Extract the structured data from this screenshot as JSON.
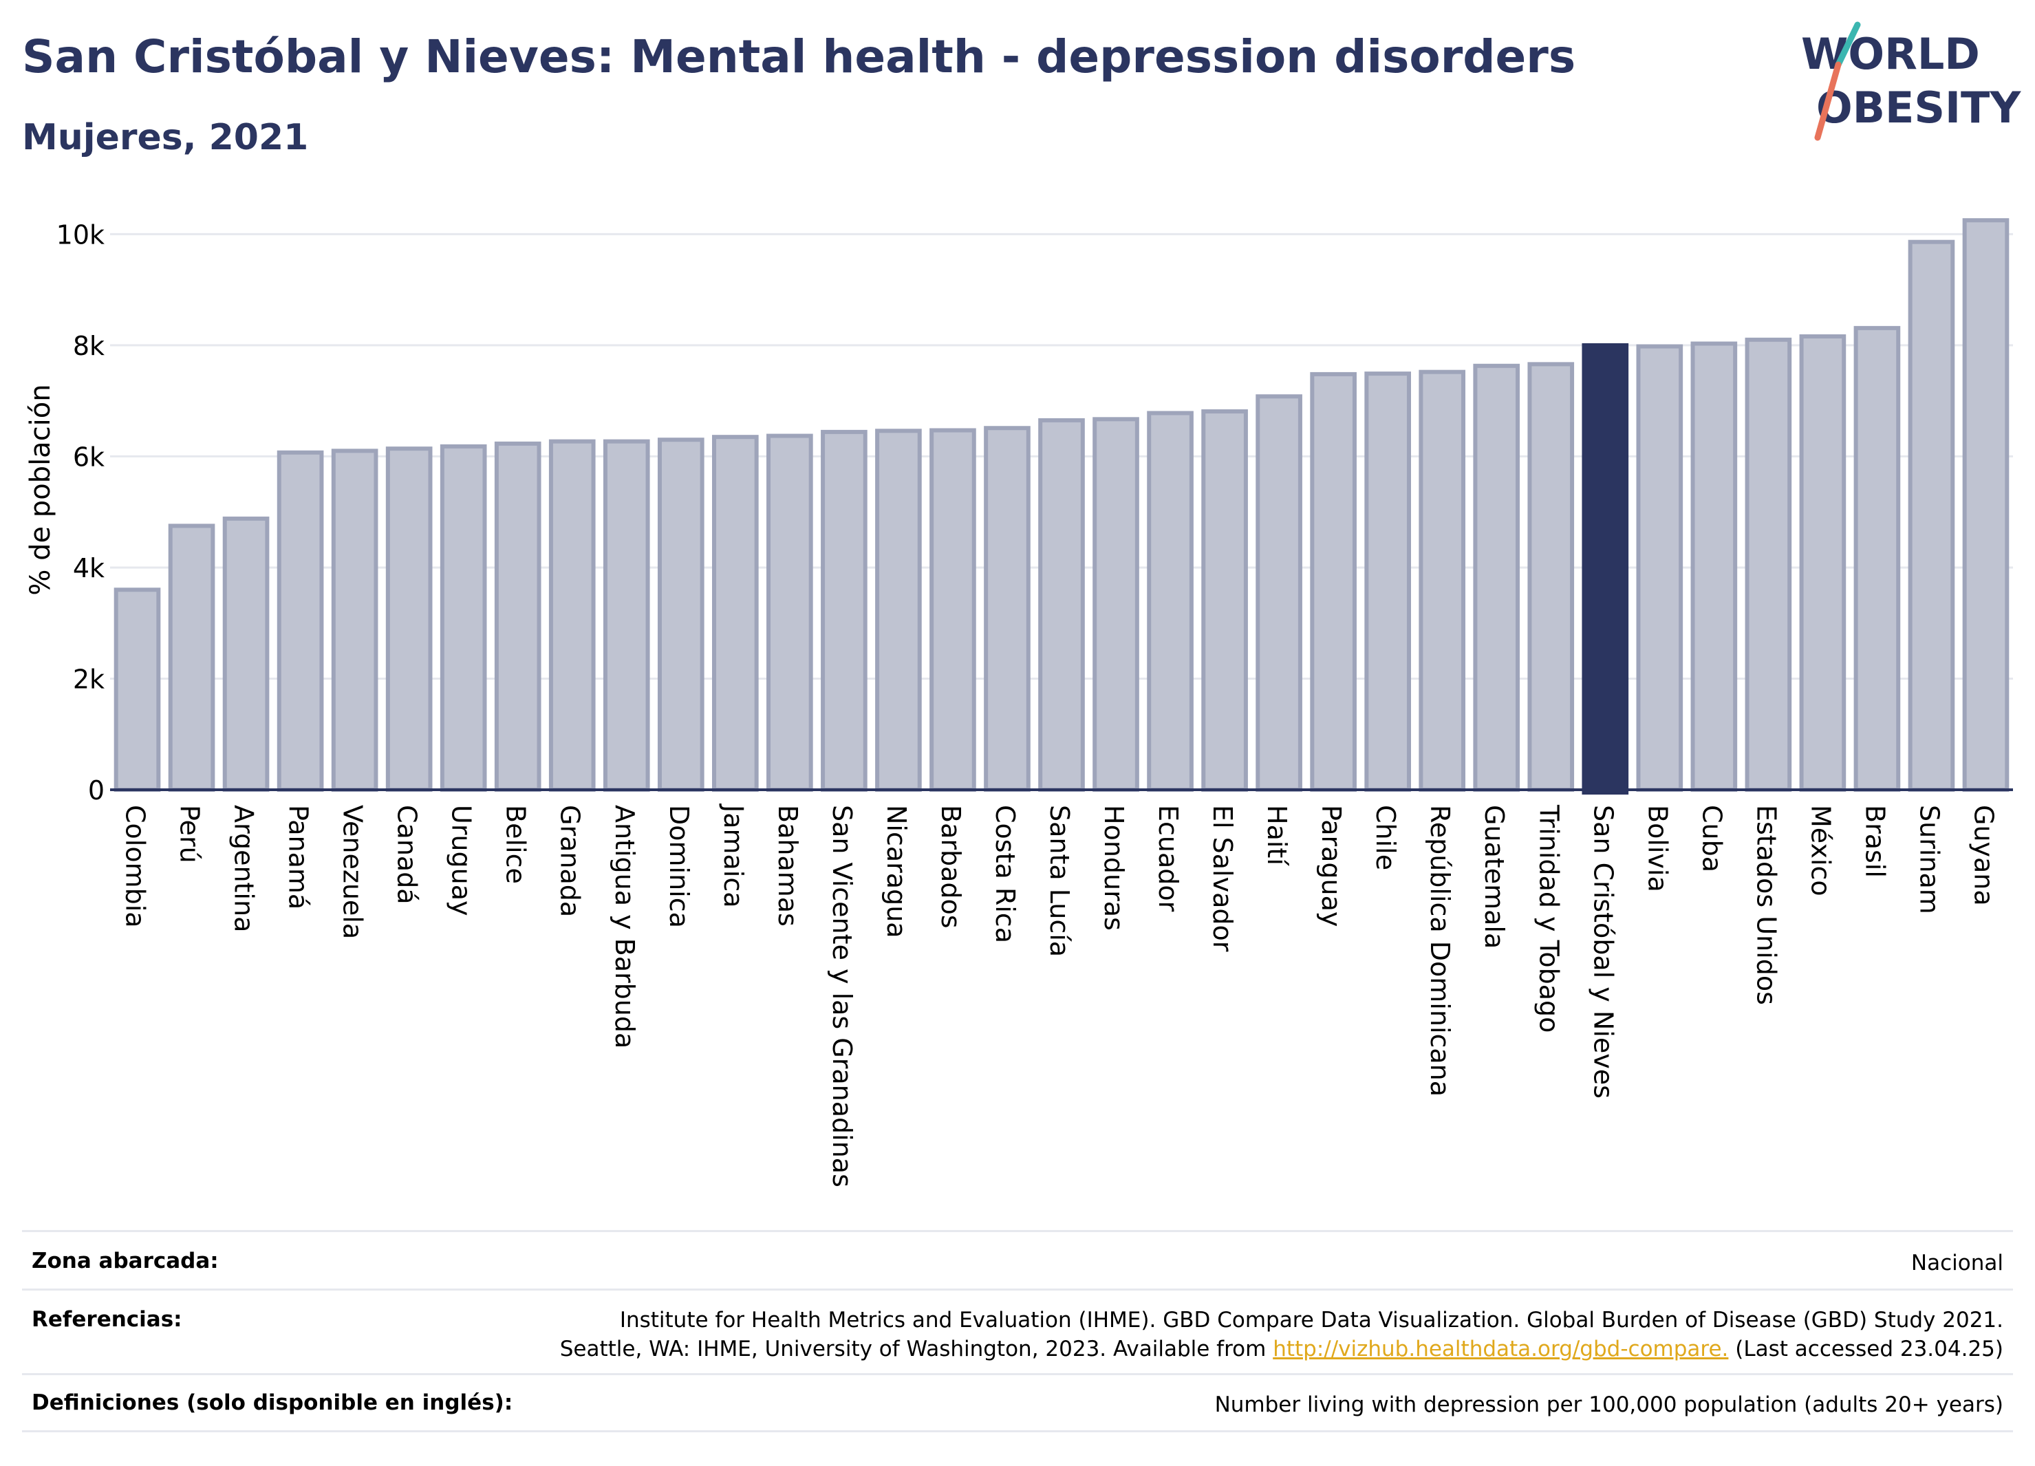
{
  "header": {
    "title": "San Cristóbal y Nieves: Mental health - depression disorders",
    "subtitle": "Mujeres, 2021"
  },
  "logo": {
    "line1": "WORLD",
    "line2": "OBESITY"
  },
  "colors": {
    "bar": "#bfc3d1",
    "bar_edge": "#9ea4ba",
    "highlight": "#2b3560",
    "grid": "#e6e8ee",
    "axis": "#2b3560"
  },
  "chart_data": {
    "type": "bar",
    "ylabel": "% de población",
    "ylim": [
      0,
      10500
    ],
    "yticks": [
      0,
      2000,
      4000,
      6000,
      8000,
      10000
    ],
    "ytick_labels": [
      "0",
      "2k",
      "4k",
      "6k",
      "8k",
      "10k"
    ],
    "grid": true,
    "highlight": "San Cristóbal y Nieves",
    "categories": [
      "Colombia",
      "Perú",
      "Argentina",
      "Panamá",
      "Venezuela",
      "Canadá",
      "Uruguay",
      "Belice",
      "Granada",
      "Antigua y Barbuda",
      "Dominica",
      "Jamaica",
      "Bahamas",
      "San Vicente y las Granadinas",
      "Nicaragua",
      "Barbados",
      "Costa Rica",
      "Santa Lucía",
      "Honduras",
      "Ecuador",
      "El Salvador",
      "Haití",
      "Paraguay",
      "Chile",
      "República Dominicana",
      "Guatemala",
      "Trinidad y Tobago",
      "San Cristóbal y Nieves",
      "Bolivia",
      "Cuba",
      "Estados Unidos",
      "México",
      "Brasil",
      "Surinam",
      "Guyana"
    ],
    "values": [
      3600,
      4750,
      4880,
      6070,
      6100,
      6140,
      6180,
      6230,
      6270,
      6270,
      6300,
      6350,
      6370,
      6440,
      6460,
      6470,
      6510,
      6650,
      6670,
      6780,
      6810,
      7080,
      7480,
      7490,
      7520,
      7630,
      7660,
      8000,
      7980,
      8030,
      8100,
      8160,
      8310,
      9860,
      10250
    ]
  },
  "info": {
    "coverage_label": "Zona abarcada:",
    "coverage_value": "Nacional",
    "references_label": "Referencias:",
    "references_line1": "Institute for Health Metrics and Evaluation (IHME). GBD Compare Data Visualization. Global Burden of Disease (GBD) Study 2021.",
    "references_line2_pre": "Seattle, WA: IHME, University of Washington, 2023. Available from ",
    "references_link": "http://vizhub.healthdata.org/gbd-compare.",
    "references_line2_post": " (Last accessed 23.04.25)",
    "definitions_label": "Definiciones (solo disponible en inglés):",
    "definitions_value": "Number living with depression per 100,000 population (adults 20+ years)"
  }
}
